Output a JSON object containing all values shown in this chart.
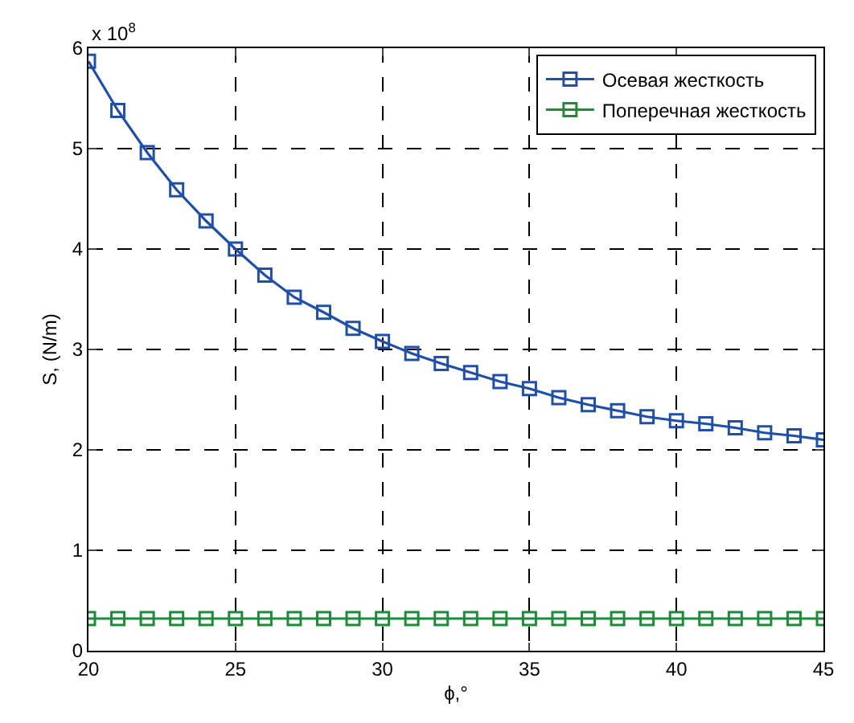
{
  "chart_data": {
    "type": "line",
    "xlabel": "ϕ,°",
    "ylabel": "S, (N/m)",
    "x": [
      20,
      21,
      22,
      23,
      24,
      25,
      26,
      27,
      28,
      29,
      30,
      31,
      32,
      33,
      34,
      35,
      36,
      37,
      38,
      39,
      40,
      41,
      42,
      43,
      44,
      45
    ],
    "series": [
      {
        "name": "Осевая жесткость",
        "color": "#1f4fa8",
        "values": [
          5.87,
          5.38,
          4.96,
          4.59,
          4.28,
          4.0,
          3.74,
          3.52,
          3.37,
          3.21,
          3.08,
          2.96,
          2.86,
          2.77,
          2.68,
          2.61,
          2.52,
          2.45,
          2.39,
          2.33,
          2.29,
          2.26,
          2.22,
          2.17,
          2.14,
          2.1
        ]
      },
      {
        "name": "Поперечная жесткость",
        "color": "#1f8a3a",
        "values": [
          0.32,
          0.32,
          0.32,
          0.32,
          0.32,
          0.32,
          0.32,
          0.32,
          0.32,
          0.32,
          0.32,
          0.32,
          0.32,
          0.32,
          0.32,
          0.32,
          0.32,
          0.32,
          0.32,
          0.32,
          0.32,
          0.32,
          0.32,
          0.32,
          0.32,
          0.32
        ]
      }
    ],
    "xlim": [
      20,
      45
    ],
    "xticks": [
      20,
      25,
      30,
      35,
      40,
      45
    ],
    "ylim": [
      0,
      6
    ],
    "yticks": [
      0,
      1,
      2,
      3,
      4,
      5,
      6
    ],
    "annotations": [
      "x 10$^{8}$"
    ],
    "grid": true,
    "legend": "top right",
    "marker": "square",
    "line_style": "solid"
  }
}
